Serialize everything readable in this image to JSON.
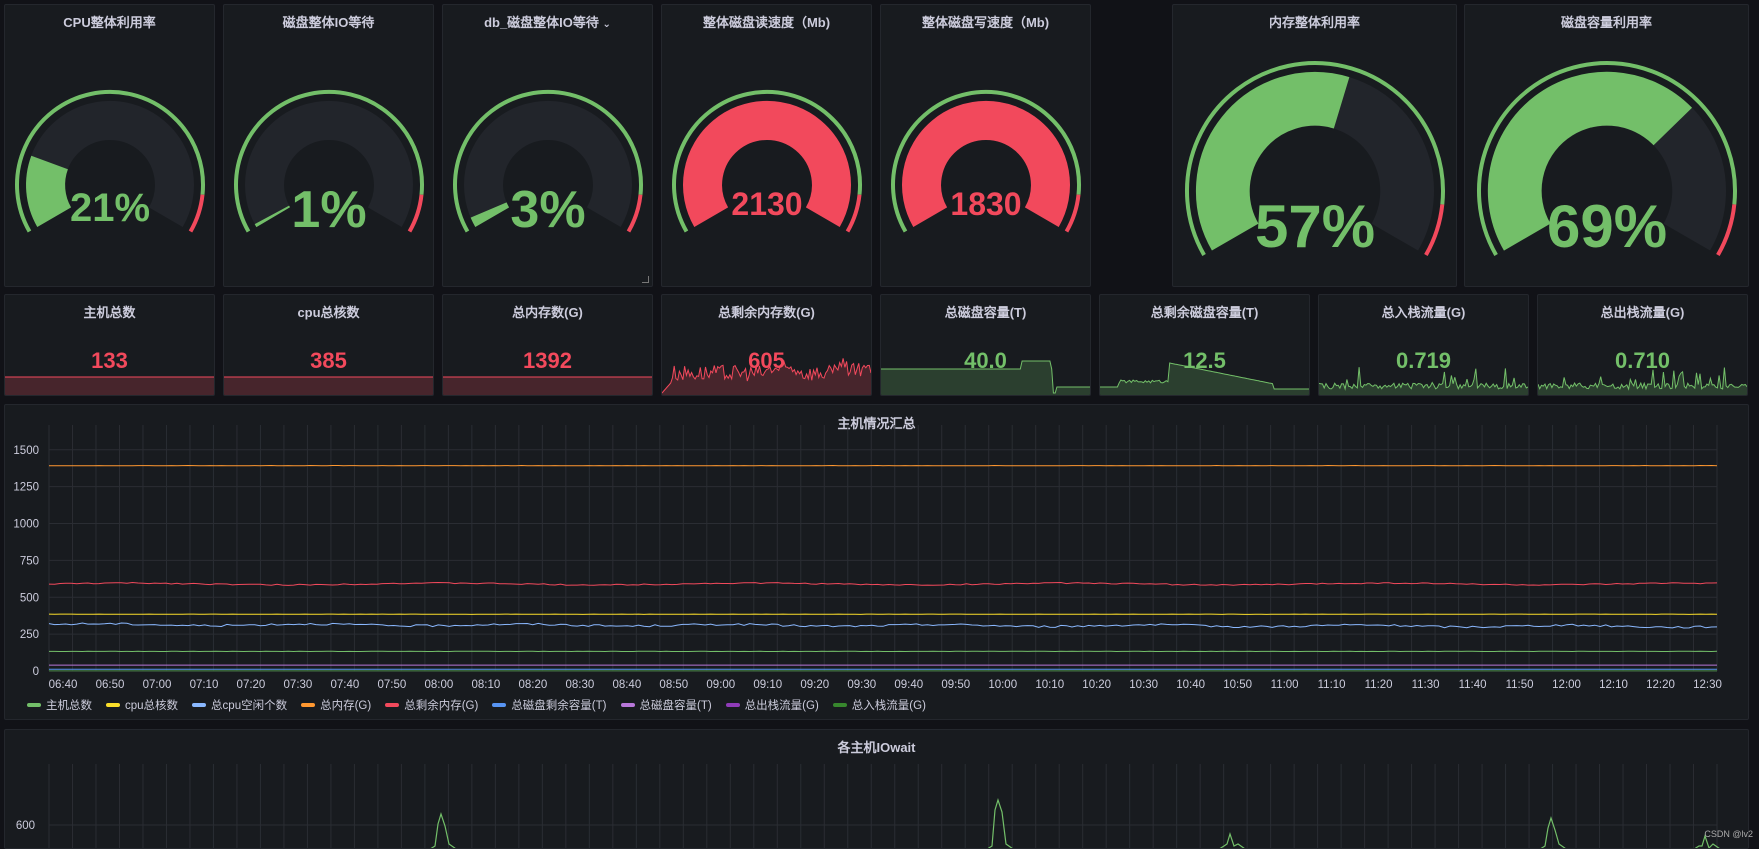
{
  "colors": {
    "green": "#73bf69",
    "red": "#f2495c",
    "track": "#22252b",
    "panel": "#181b1f"
  },
  "gauges": [
    {
      "id": "cpu",
      "title": "CPU整体利用率",
      "value": "21%",
      "fraction": 0.21,
      "color": "#73bf69"
    },
    {
      "id": "disk-io",
      "title": "磁盘整体IO等待",
      "value": "1%",
      "fraction": 0.01,
      "color": "#73bf69"
    },
    {
      "id": "db-disk-io",
      "title": "db_磁盘整体IO等待",
      "value": "3%",
      "fraction": 0.03,
      "color": "#73bf69",
      "chevron": "chevron-down-icon"
    },
    {
      "id": "disk-read",
      "title": "整体磁盘读速度（Mb)",
      "value": "2130",
      "fraction": 1.0,
      "color": "#f2495c"
    },
    {
      "id": "disk-write",
      "title": "整体磁盘写速度（Mb)",
      "value": "1830",
      "fraction": 1.0,
      "color": "#f2495c"
    },
    {
      "id": "mem",
      "title": "内存整体利用率",
      "value": "57%",
      "fraction": 0.57,
      "color": "#73bf69"
    },
    {
      "id": "disk-cap",
      "title": "磁盘容量利用率",
      "value": "69%",
      "fraction": 0.69,
      "color": "#73bf69"
    }
  ],
  "stats": [
    {
      "id": "hosts",
      "title": "主机总数",
      "value": "133",
      "color": "#f2495c",
      "spark": "flat"
    },
    {
      "id": "cores",
      "title": "cpu总核数",
      "value": "385",
      "color": "#f2495c",
      "spark": "flat"
    },
    {
      "id": "mem-total",
      "title": "总内存数(G)",
      "value": "1392",
      "color": "#f2495c",
      "spark": "flat"
    },
    {
      "id": "mem-free",
      "title": "总剩余内存数(G)",
      "value": "605",
      "color": "#f2495c",
      "spark": "noisy"
    },
    {
      "id": "disk-total",
      "title": "总磁盘容量(T)",
      "value": "40.0",
      "color": "#73bf69",
      "spark": "step"
    },
    {
      "id": "disk-free",
      "title": "总剩余磁盘容量(T)",
      "value": "12.5",
      "color": "#73bf69",
      "spark": "bump"
    },
    {
      "id": "net-in",
      "title": "总入栈流量(G)",
      "value": "0.719",
      "color": "#73bf69",
      "spark": "spiky"
    },
    {
      "id": "net-out",
      "title": "总出栈流量(G)",
      "value": "0.710",
      "color": "#73bf69",
      "spark": "spiky"
    }
  ],
  "summary": {
    "title": "主机情况汇总",
    "chart_data": {
      "type": "line",
      "x": [
        "06:40",
        "06:50",
        "07:00",
        "07:10",
        "07:20",
        "07:30",
        "07:40",
        "07:50",
        "08:00",
        "08:10",
        "08:20",
        "08:30",
        "08:40",
        "08:50",
        "09:00",
        "09:10",
        "09:20",
        "09:30",
        "09:40",
        "09:50",
        "10:00",
        "10:10",
        "10:20",
        "10:30",
        "10:40",
        "10:50",
        "11:00",
        "11:10",
        "11:20",
        "11:30",
        "11:40",
        "11:50",
        "12:00",
        "12:10",
        "12:20",
        "12:30"
      ],
      "yticks": [
        0,
        250,
        500,
        750,
        1000,
        1250,
        1500
      ],
      "ylim": [
        0,
        1600
      ],
      "series": [
        {
          "name": "主机总数",
          "color": "#73bf69",
          "value": 133
        },
        {
          "name": "cpu总核数",
          "color": "#fade2a",
          "value": 385
        },
        {
          "name": "总cpu空闲个数",
          "color": "#8ab8ff",
          "value": 315
        },
        {
          "name": "总内存(G)",
          "color": "#ff9830",
          "value": 1392
        },
        {
          "name": "总剩余内存(G)",
          "color": "#f2495c",
          "value": 590
        },
        {
          "name": "总磁盘剩余容量(T)",
          "color": "#5794f2",
          "value": 12
        },
        {
          "name": "总磁盘容量(T)",
          "color": "#b877d9",
          "value": 40
        },
        {
          "name": "总出栈流量(G)",
          "color": "#8f3bb8",
          "value": 1
        },
        {
          "name": "总入栈流量(G)",
          "color": "#37872d",
          "value": 1
        }
      ]
    }
  },
  "iowait": {
    "title": "各主机IOwait",
    "ytick": "600"
  },
  "watermark": "CSDN @lv2"
}
